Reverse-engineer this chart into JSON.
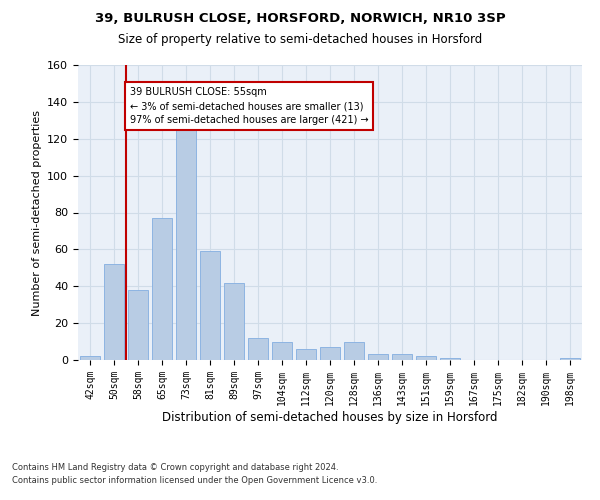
{
  "title1": "39, BULRUSH CLOSE, HORSFORD, NORWICH, NR10 3SP",
  "title2": "Size of property relative to semi-detached houses in Horsford",
  "xlabel": "Distribution of semi-detached houses by size in Horsford",
  "ylabel": "Number of semi-detached properties",
  "categories": [
    "42sqm",
    "50sqm",
    "58sqm",
    "65sqm",
    "73sqm",
    "81sqm",
    "89sqm",
    "97sqm",
    "104sqm",
    "112sqm",
    "120sqm",
    "128sqm",
    "136sqm",
    "143sqm",
    "151sqm",
    "159sqm",
    "167sqm",
    "175sqm",
    "182sqm",
    "190sqm",
    "198sqm"
  ],
  "values": [
    2,
    52,
    38,
    77,
    126,
    59,
    42,
    12,
    10,
    6,
    7,
    10,
    3,
    3,
    2,
    1,
    0,
    0,
    0,
    0,
    1
  ],
  "bar_color": "#b8cce4",
  "bar_edge_color": "#8db4e2",
  "subject_line_color": "#c00000",
  "annotation_text": "39 BULRUSH CLOSE: 55sqm\n← 3% of semi-detached houses are smaller (13)\n97% of semi-detached houses are larger (421) →",
  "annotation_box_color": "#c00000",
  "background_color": "#ffffff",
  "plot_bg_color": "#eaf0f8",
  "grid_color": "#d0dce8",
  "footer1": "Contains HM Land Registry data © Crown copyright and database right 2024.",
  "footer2": "Contains public sector information licensed under the Open Government Licence v3.0.",
  "ylim": [
    0,
    160
  ],
  "yticks": [
    0,
    20,
    40,
    60,
    80,
    100,
    120,
    140,
    160
  ]
}
